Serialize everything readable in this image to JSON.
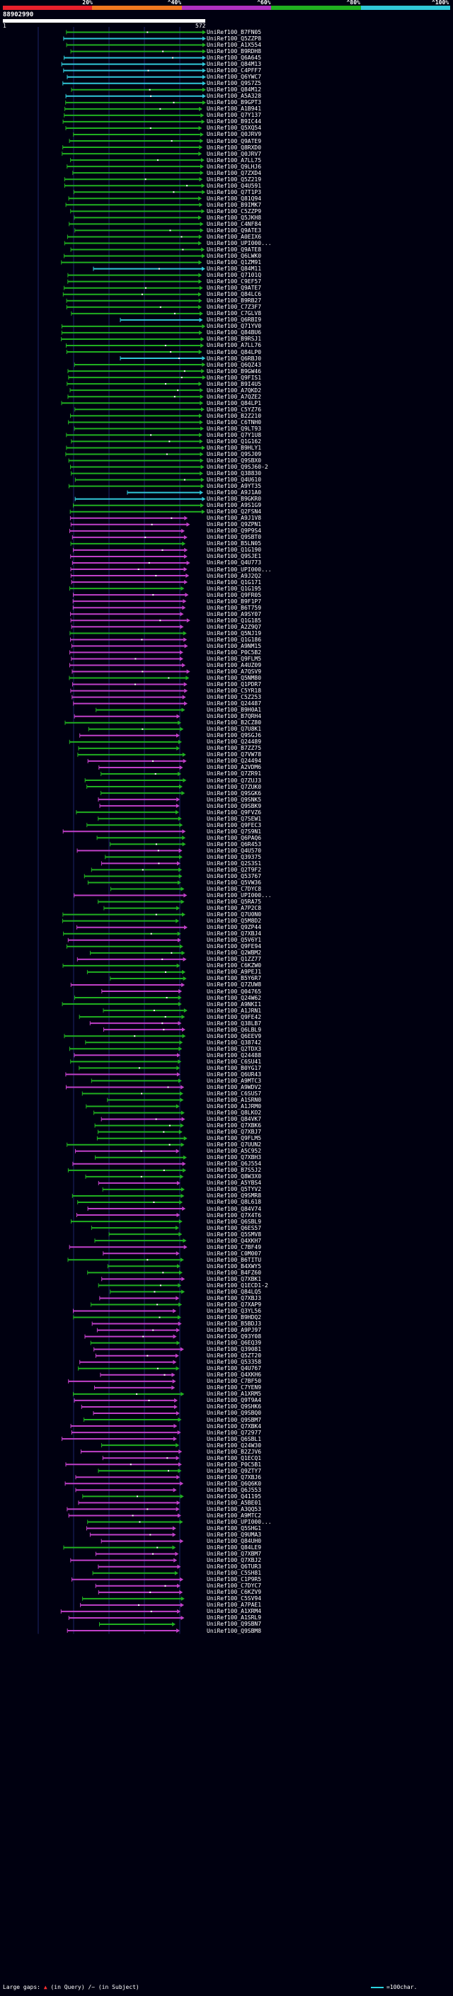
{
  "legend": {
    "segments": [
      {
        "label": "20%",
        "color": "#e8202c"
      },
      {
        "label": "^40%",
        "color": "#f07820"
      },
      {
        "label": "^60%",
        "color": "#b030c0"
      },
      {
        "label": "^80%",
        "color": "#20b020"
      },
      {
        "label": "^100%",
        "color": "#30c8d8"
      }
    ]
  },
  "query": {
    "id": "88902990",
    "start": "1",
    "end": "572"
  },
  "colors": {
    "cyan": "#30c8d8",
    "green": "#20b020",
    "magenta": "#c040c8",
    "white": "#ffffff",
    "grid": "#1c2468"
  },
  "hits": [
    "UniRef100_B7FN05",
    "UniRef100_Q5ZZP8",
    "UniRef100_A1X554",
    "UniRef100_B9RDH8",
    "UniRef100_Q6A645",
    "UniRef100_Q84M13",
    "UniRef100_C4PFF7",
    "UniRef100_Q6YWC7",
    "UniRef100_Q9S7Z5",
    "UniRef100_Q84M12",
    "UniRef100_A5A328",
    "UniRef100_B9GPT3",
    "UniRef100_A1B941",
    "UniRef100_Q7Y137",
    "UniRef100_B9IC44",
    "UniRef100_Q5XQ54",
    "UniRef100_Q0JRV9",
    "UniRef100_Q9ATE9",
    "UniRef100_Q8RXD0",
    "UniRef100_Q0JRV7",
    "UniRef100_A7LL75",
    "UniRef100_Q9LHJ6",
    "UniRef100_Q7ZXD4",
    "UniRef100_Q5Z219",
    "UniRef100_Q4U591",
    "UniRef100_Q7T1P3",
    "UniRef100_Q81Q94",
    "UniRef100_B9IMK7",
    "UniRef100_C5ZZP9",
    "UniRef100_Q5JKH8",
    "UniRef100_C4NF84",
    "UniRef100_Q9ATE3",
    "UniRef100_A0EIX6",
    "UniRef100_UPI000...",
    "UniRef100_Q9ATE8",
    "UniRef100_Q6LWK0",
    "UniRef100_Q1ZM91",
    "UniRef100_Q84M11",
    "UniRef100_Q7101Q",
    "UniRef100_C9EF57",
    "UniRef100_Q9ATE7",
    "UniRef100_Q84LC6",
    "UniRef100_B9RB27",
    "UniRef100_C7Z3F7",
    "UniRef100_C7GLV8",
    "UniRef100_Q6RBI9",
    "UniRef100_Q71YV0",
    "UniRef100_Q84BU6",
    "UniRef100_B9RSJ1",
    "UniRef100_A7LL76",
    "UniRef100_Q84LP0",
    "UniRef100_Q6RBJ0",
    "UniRef100_Q6QZ43",
    "UniRef100_B9GW46",
    "UniRef100_Q9FIS1",
    "UniRef100_B9I4U5",
    "UniRef100_A7QKD2",
    "UniRef100_A7QZE2",
    "UniRef100_Q84LP1",
    "UniRef100_C5YZ76",
    "UniRef100_B2Z210",
    "UniRef100_C6TNH0",
    "UniRef100_Q9LT93",
    "UniRef100_Q7Y1U8",
    "UniRef100_Q1G162",
    "UniRef100_B9HLY1",
    "UniRef100_Q9SJ09",
    "UniRef100_Q9SBX0",
    "UniRef100_Q9SJ60-2",
    "UniRef100_Q38830",
    "UniRef100_Q4U610",
    "UniRef100_A9YT35",
    "UniRef100_A9J1A0",
    "UniRef100_B9GKR0",
    "UniRef100_A9S1G9",
    "UniRef100_Q2FSN4",
    "UniRef100_A9J1V8",
    "UniRef100_Q9ZPN1",
    "UniRef100_Q9P9S4",
    "UniRef100_Q9SBT0",
    "UniRef100_B5LN05",
    "UniRef100_Q1G190",
    "UniRef100_Q9SJE1",
    "UniRef100_Q4U773",
    "UniRef100_UPI000...",
    "UniRef100_A9J2Q2",
    "UniRef100_Q1G171",
    "UniRef100_Q1G195",
    "UniRef100_Q9FR05",
    "UniRef100_B9F1P7",
    "UniRef100_B6T759",
    "UniRef100_A9SY07",
    "UniRef100_Q1G185",
    "UniRef100_A2Z9Q7",
    "UniRef100_Q5NJ19",
    "UniRef100_Q1G186",
    "UniRef100_A9NM15",
    "UniRef100_P0C5B2",
    "UniRef100_Q9FLM5",
    "UniRef100_A4UZ09",
    "UniRef100_A7QSV9",
    "UniRef100_Q5NM80",
    "UniRef100_Q1PDR7",
    "UniRef100_C5YR18",
    "UniRef100_C5Z253",
    "UniRef100_Q24487",
    "UniRef100_B9H0A1",
    "UniRef100_B7QRH4",
    "UniRef100_B2CZ80",
    "UniRef100_Q7U8K1",
    "UniRef100_Q9SGJ6",
    "UniRef100_Q24489",
    "UniRef100_B7ZZ75",
    "UniRef100_Q7VW78",
    "UniRef100_Q24494",
    "UniRef100_A2VDM6",
    "UniRef100_Q7ZR91",
    "UniRef100_Q7ZUJ3",
    "UniRef100_Q7ZUK0",
    "UniRef100_Q9SGK6",
    "UniRef100_Q9SNK5",
    "UniRef100_Q9SBK9",
    "UniRef100_Q9FVZ6",
    "UniRef100_Q7SEW1",
    "UniRef100_Q9FEC3",
    "UniRef100_Q7S9N1",
    "UniRef100_Q6PAQ6",
    "UniRef100_Q6R453",
    "UniRef100_Q4U570",
    "UniRef100_Q39375",
    "UniRef100_Q2S3S1",
    "UniRef100_Q2T9F2",
    "UniRef100_Q53767",
    "UniRef100_Q5VW36",
    "UniRef100_C7DYC8",
    "UniRef100_UPI000...",
    "UniRef100_Q5RA75",
    "UniRef100_A7P2C8",
    "UniRef100_Q7U0N0",
    "UniRef100_Q5M8D2",
    "UniRef100_Q9ZP44",
    "UniRef100_Q7XBJ4",
    "UniRef100_Q5V6Y1",
    "UniRef100_Q9FE94",
    "UniRef100_Q2WBM2",
    "UniRef100_Q1ZZ77",
    "UniRef100_C6KZW0",
    "UniRef100_A9PEJ1",
    "UniRef100_B5Y6R7",
    "UniRef100_Q7ZUW8",
    "UniRef100_Q04765",
    "UniRef100_Q24W62",
    "UniRef100_A9NKI1",
    "UniRef100_A1JRN1",
    "UniRef100_Q9FE42",
    "UniRef100_Q38LB7",
    "UniRef100_Q6LBL9",
    "UniRef100_Q6EEV9",
    "UniRef100_Q38742",
    "UniRef100_Q2TDX3",
    "UniRef100_Q24488",
    "UniRef100_C6SU41",
    "UniRef100_B0YG17",
    "UniRef100_Q6UR43",
    "UniRef100_A9MTC3",
    "UniRef100_A9WDV2",
    "UniRef100_C6SUS7",
    "UniRef100_A1SRN0",
    "UniRef100_A1JRM0",
    "UniRef100_Q8LKO2",
    "UniRef100_Q84VK7",
    "UniRef100_Q7XBK6",
    "UniRef100_Q7XBJ7",
    "UniRef100_Q9FLM5",
    "UniRef100_Q7UUN2",
    "UniRef100_A5C952",
    "UniRef100_Q7XBH3",
    "UniRef100_Q6J554",
    "UniRef100_B7S5J2",
    "UniRef100_Q8W3X0",
    "UniRef100_A5YBS4",
    "UniRef100_Q5TYV2",
    "UniRef100_Q9SMR8",
    "UniRef100_Q8L618",
    "UniRef100_Q84V74",
    "UniRef100_Q7X4T6",
    "UniRef100_Q6SBL9",
    "UniRef100_Q6ES57",
    "UniRef100_Q5SMV8",
    "UniRef100_Q4XKH7",
    "UniRef100_C7BF49",
    "UniRef100_C0M007",
    "UniRef100_B6TITU",
    "UniRef100_B4XWY5",
    "UniRef100_B4FZ60",
    "UniRef100_Q7XBK1",
    "UniRef100_Q1ECD1-2",
    "UniRef100_Q84LQ5",
    "UniRef100_Q7XBJ3",
    "UniRef100_Q7XAP9",
    "UniRef100_Q3YL56",
    "UniRef100_B9HDQ2",
    "UniRef100_B5BDJ3",
    "UniRef100_A9PJ97",
    "UniRef100_Q93Y08",
    "UniRef100_Q6EQ39",
    "UniRef100_Q39081",
    "UniRef100_Q5ZT20",
    "UniRef100_Q53358",
    "UniRef100_Q4U767",
    "UniRef100_Q4XKH6",
    "UniRef100_C7BF50",
    "UniRef100_C7YEN9",
    "UniRef100_A1XRM5",
    "UniRef100_Q9T9A4",
    "UniRef100_Q9SHK6",
    "UniRef100_Q9SBQ0",
    "UniRef100_Q9SBM7",
    "UniRef100_Q7XBK4",
    "UniRef100_Q72977",
    "UniRef100_Q6SBL1",
    "UniRef100_Q24W30",
    "UniRef100_B2ZJV6",
    "UniRef100_Q1ECQ1",
    "UniRef100_P0C5B1",
    "UniRef100_Q9ZTY7",
    "UniRef100_Q7XBJ6",
    "UniRef100_Q6Q6K0",
    "UniRef100_Q6J553",
    "UniRef100_Q41195",
    "UniRef100_A5BE01",
    "UniRef100_A3QQ53",
    "UniRef100_A9MTC2",
    "UniRef100_UPI000...",
    "UniRef100_Q5SHG1",
    "UniRef100_Q9UMA3",
    "UniRef100_Q84UH0",
    "UniRef100_Q84LE9",
    "UniRef100_Q7XBM7",
    "UniRef100_Q7XBJ2",
    "UniRef100_Q6TUR3",
    "UniRef100_C5SH81",
    "UniRef100_C1P9R5",
    "UniRef100_C7DYC7",
    "UniRef100_C6KZV9",
    "UniRef100_C5SV94",
    "UniRef100_A7PAE1",
    "UniRef100_A1XRM4",
    "UniRef100_A1SRL9",
    "UniRef100_Q9SBN7",
    "UniRef100_Q9SBM8"
  ],
  "footer": {
    "prefix": "Large gaps:",
    "query_gap": "(in Query)",
    "subject_gap": "/~ (in Subject)",
    "scale": "=100char."
  }
}
